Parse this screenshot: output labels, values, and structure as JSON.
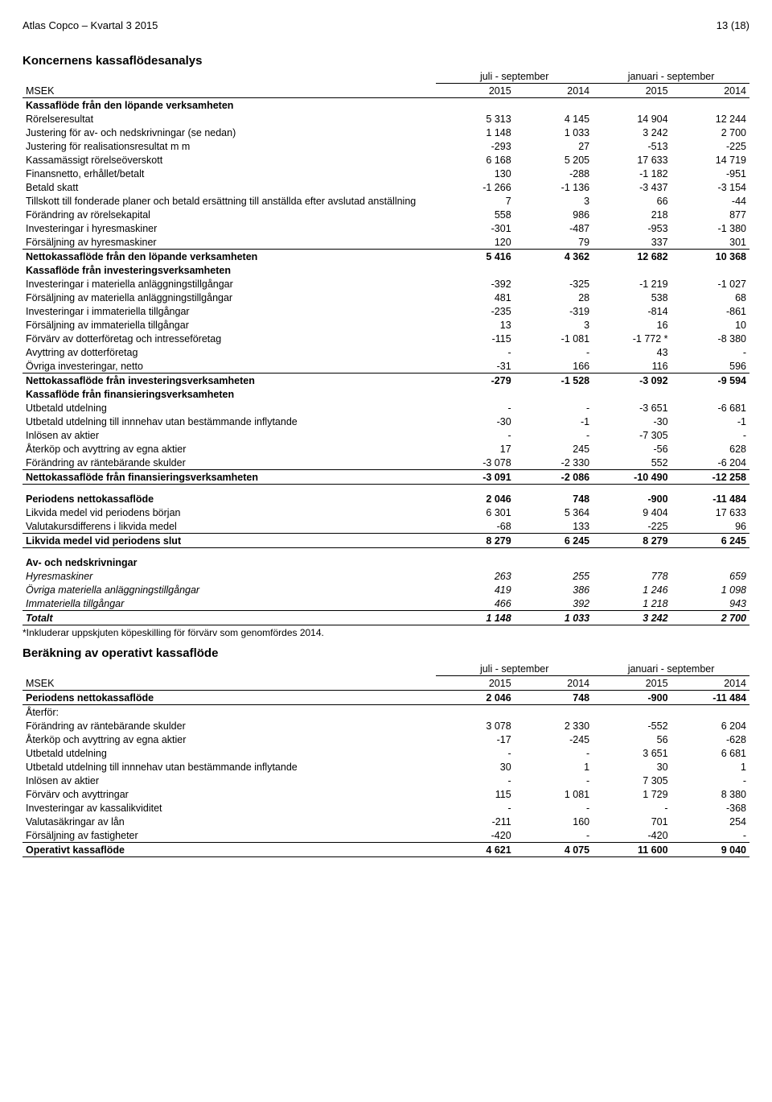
{
  "header": {
    "left": "Atlas Copco – Kvartal 3 2015",
    "right": "13 (18)"
  },
  "table1": {
    "title": "Koncernens kassaflödesanalys",
    "group_headers": [
      "juli - september",
      "januari - september"
    ],
    "col_label": "MSEK",
    "cols": [
      "2015",
      "2014",
      "2015",
      "2014"
    ],
    "blocks": [
      {
        "rows": [
          {
            "label": "Kassaflöde från den löpande verksamheten",
            "vals": [
              "",
              "",
              "",
              ""
            ],
            "bold": true
          },
          {
            "label": "Rörelseresultat",
            "vals": [
              "5 313",
              "4 145",
              "14 904",
              "12 244"
            ]
          },
          {
            "label": "Justering för av- och nedskrivningar (se nedan)",
            "vals": [
              "1 148",
              "1 033",
              "3 242",
              "2 700"
            ]
          },
          {
            "label": "Justering för realisationsresultat m m",
            "vals": [
              "-293",
              "27",
              "-513",
              "-225"
            ]
          },
          {
            "label": "Kassamässigt rörelseöverskott",
            "vals": [
              "6 168",
              "5 205",
              "17 633",
              "14 719"
            ]
          },
          {
            "label": "Finansnetto, erhållet/betalt",
            "vals": [
              "130",
              "-288",
              "-1 182",
              "-951"
            ]
          },
          {
            "label": "Betald skatt",
            "vals": [
              "-1 266",
              "-1 136",
              "-3 437",
              "-3 154"
            ]
          },
          {
            "label": "Tillskott till fonderade planer och betald ersättning till anställda efter avslutad anställning",
            "vals": [
              "7",
              "3",
              "66",
              "-44"
            ]
          },
          {
            "label": "Förändring av rörelsekapital",
            "vals": [
              "558",
              "986",
              "218",
              "877"
            ]
          },
          {
            "label": "Investeringar i hyresmaskiner",
            "vals": [
              "-301",
              "-487",
              "-953",
              "-1 380"
            ]
          },
          {
            "label": "Försäljning av hyresmaskiner",
            "vals": [
              "120",
              "79",
              "337",
              "301"
            ]
          }
        ]
      },
      {
        "rows": [
          {
            "label": "Nettokassaflöde från den löpande verksamheten",
            "vals": [
              "5 416",
              "4 362",
              "12 682",
              "10 368"
            ],
            "bold": true,
            "rule_top": true
          },
          {
            "label": "Kassaflöde från investeringsverksamheten",
            "vals": [
              "",
              "",
              "",
              ""
            ],
            "bold": true
          },
          {
            "label": "Investeringar i materiella anläggningstillgångar",
            "vals": [
              "-392",
              "-325",
              "-1 219",
              "-1 027"
            ]
          },
          {
            "label": "Försäljning av materiella anläggningstillgångar",
            "vals": [
              "481",
              "28",
              "538",
              "68"
            ]
          },
          {
            "label": "Investeringar i immateriella tillgångar",
            "vals": [
              "-235",
              "-319",
              "-814",
              "-861"
            ]
          },
          {
            "label": "Försäljning av immateriella tillgångar",
            "vals": [
              "13",
              "3",
              "16",
              "10"
            ]
          },
          {
            "label": "Förvärv av dotterföretag och intresseföretag",
            "vals": [
              "-115",
              "-1 081",
              "-1 772 *",
              "-8 380"
            ]
          },
          {
            "label": "Avyttring av dotterföretag",
            "vals": [
              "-",
              "-",
              "43",
              "-"
            ]
          },
          {
            "label": "Övriga investeringar, netto",
            "vals": [
              "-31",
              "166",
              "116",
              "596"
            ]
          }
        ]
      },
      {
        "rows": [
          {
            "label": "Nettokassaflöde från investeringsverksamheten",
            "vals": [
              "-279",
              "-1 528",
              "-3 092",
              "-9 594"
            ],
            "bold": true,
            "rule_top": true
          },
          {
            "label": "Kassaflöde från finansieringsverksamheten",
            "vals": [
              "",
              "",
              "",
              ""
            ],
            "bold": true
          },
          {
            "label": "Utbetald utdelning",
            "vals": [
              "-",
              "-",
              "-3 651",
              "-6 681"
            ]
          },
          {
            "label": "Utbetald utdelning till innnehav utan bestämmande inflytande",
            "vals": [
              "-30",
              "-1",
              "-30",
              "-1"
            ]
          },
          {
            "label": "Inlösen av aktier",
            "vals": [
              "-",
              "-",
              "-7 305",
              "-"
            ]
          },
          {
            "label": "Återköp och avyttring av egna aktier",
            "vals": [
              "17",
              "245",
              "-56",
              "628"
            ]
          },
          {
            "label": "Förändring av räntebärande skulder",
            "vals": [
              "-3 078",
              "-2 330",
              "552",
              "-6 204"
            ]
          }
        ]
      },
      {
        "rows": [
          {
            "label": "Nettokassaflöde från finansieringsverksamheten",
            "vals": [
              "-3 091",
              "-2 086",
              "-10 490",
              "-12 258"
            ],
            "bold": true,
            "rule_top": true,
            "rule_bottom": true
          }
        ]
      },
      {
        "gap": true,
        "rows": [
          {
            "label": "Periodens nettokassaflöde",
            "vals": [
              "2 046",
              "748",
              "-900",
              "-11 484"
            ],
            "bold": true
          },
          {
            "label": "Likvida medel vid periodens början",
            "vals": [
              "6 301",
              "5 364",
              "9 404",
              "17 633"
            ]
          },
          {
            "label": "Valutakursdifferens i likvida medel",
            "vals": [
              "-68",
              "133",
              "-225",
              "96"
            ]
          }
        ]
      },
      {
        "rows": [
          {
            "label": "Likvida medel vid periodens slut",
            "vals": [
              "8 279",
              "6 245",
              "8 279",
              "6 245"
            ],
            "bold": true,
            "rule_top": true,
            "rule_bottom": true
          }
        ]
      },
      {
        "gap": true,
        "rows": [
          {
            "label": "Av- och nedskrivningar",
            "vals": [
              "",
              "",
              "",
              ""
            ],
            "bold": true
          },
          {
            "label": "Hyresmaskiner",
            "vals": [
              "263",
              "255",
              "778",
              "659"
            ],
            "italic": true
          },
          {
            "label": "Övriga materiella anläggningstillgångar",
            "vals": [
              "419",
              "386",
              "1 246",
              "1 098"
            ],
            "italic": true
          },
          {
            "label": "Immateriella tillgångar",
            "vals": [
              "466",
              "392",
              "1 218",
              "943"
            ],
            "italic": true
          }
        ]
      },
      {
        "rows": [
          {
            "label": "Totalt",
            "vals": [
              "1 148",
              "1 033",
              "3 242",
              "2 700"
            ],
            "italic": true,
            "bold": true,
            "rule_top": true,
            "rule_bottom": true
          }
        ]
      }
    ],
    "footnote": "*Inkluderar uppskjuten köpeskilling för förvärv som genomfördes 2014."
  },
  "table2": {
    "title": "Beräkning av operativt kassaflöde",
    "group_headers": [
      "juli - september",
      "januari - september"
    ],
    "col_label": "MSEK",
    "cols": [
      "2015",
      "2014",
      "2015",
      "2014"
    ],
    "blocks": [
      {
        "rows": [
          {
            "label": "Periodens nettokassaflöde",
            "vals": [
              "2 046",
              "748",
              "-900",
              "-11 484"
            ],
            "bold": true,
            "rule_bottom": true
          },
          {
            "label": "Återför:",
            "vals": [
              "",
              "",
              "",
              ""
            ]
          },
          {
            "label": "Förändring av räntebärande skulder",
            "vals": [
              "3 078",
              "2 330",
              "-552",
              "6 204"
            ]
          },
          {
            "label": "Återköp och avyttring av egna aktier",
            "vals": [
              "-17",
              "-245",
              "56",
              "-628"
            ]
          },
          {
            "label": "Utbetald utdelning",
            "vals": [
              "-",
              "-",
              "3 651",
              "6 681"
            ]
          },
          {
            "label": "Utbetald utdelning till innnehav utan bestämmande inflytande",
            "vals": [
              "30",
              "1",
              "30",
              "1"
            ]
          },
          {
            "label": "Inlösen av aktier",
            "vals": [
              "-",
              "-",
              "7 305",
              "-"
            ]
          },
          {
            "label": "Förvärv och avyttringar",
            "vals": [
              "115",
              "1 081",
              "1 729",
              "8 380"
            ]
          },
          {
            "label": "Investeringar av kassalikviditet",
            "vals": [
              "-",
              "-",
              "-",
              "-368"
            ]
          },
          {
            "label": "Valutasäkringar av lån",
            "vals": [
              "-211",
              "160",
              "701",
              "254"
            ]
          },
          {
            "label": "Försäljning av fastigheter",
            "vals": [
              "-420",
              "-",
              "-420",
              "-"
            ]
          }
        ]
      },
      {
        "rows": [
          {
            "label": "Operativt kassaflöde",
            "vals": [
              "4 621",
              "4 075",
              "11 600",
              "9 040"
            ],
            "bold": true,
            "rule_top": true,
            "rule_bottom": true
          }
        ]
      }
    ]
  }
}
